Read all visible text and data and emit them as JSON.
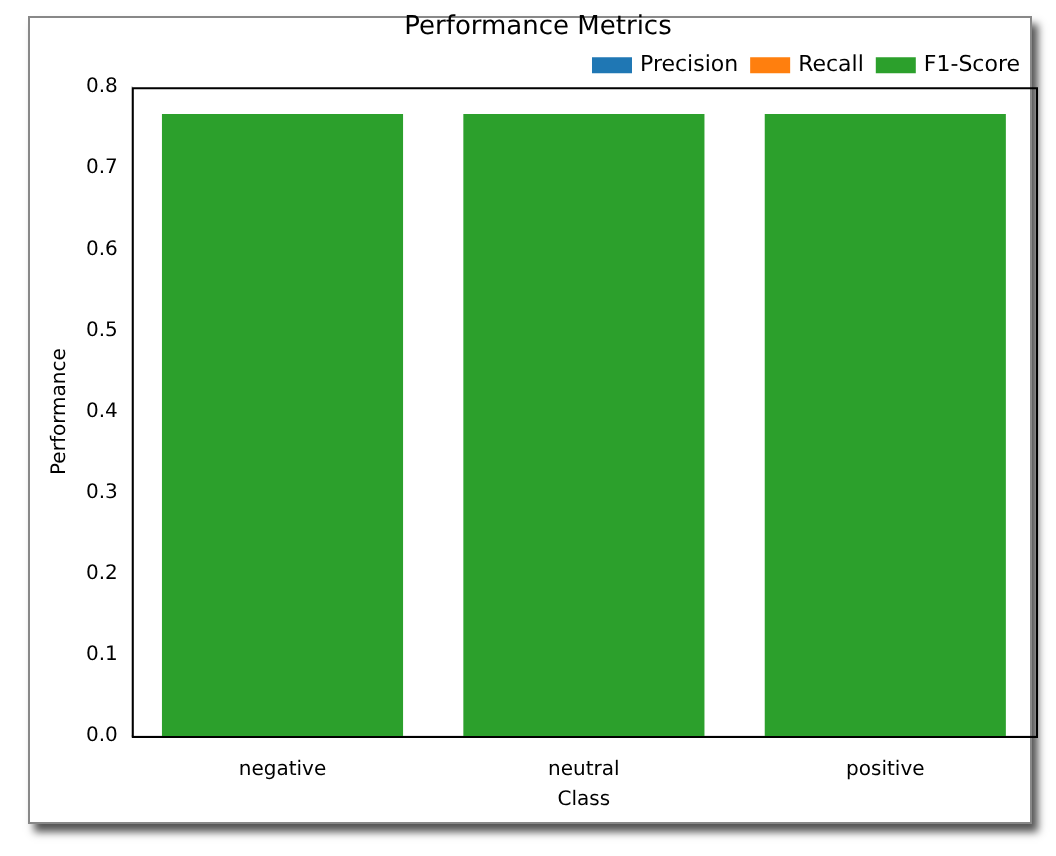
{
  "chart_data": {
    "type": "bar",
    "title": "Performance Metrics",
    "xlabel": "Class",
    "ylabel": "Performance",
    "categories": [
      "negative",
      "neutral",
      "positive"
    ],
    "series": [
      {
        "name": "Precision",
        "color": "#1f77b4",
        "values": [
          null,
          null,
          null
        ]
      },
      {
        "name": "Recall",
        "color": "#ff7f0e",
        "values": [
          null,
          null,
          null
        ]
      },
      {
        "name": "F1-Score",
        "color": "#2ca02c",
        "values": [
          0.767,
          0.767,
          0.767
        ]
      }
    ],
    "ylim": [
      0,
      0.8
    ],
    "yticks": [
      {
        "value": 0,
        "label": "0.0"
      },
      0.1,
      0.2,
      0.3,
      0.4,
      0.5,
      0.6,
      0.7,
      0.8
    ],
    "grid": false,
    "legend": "top right"
  }
}
